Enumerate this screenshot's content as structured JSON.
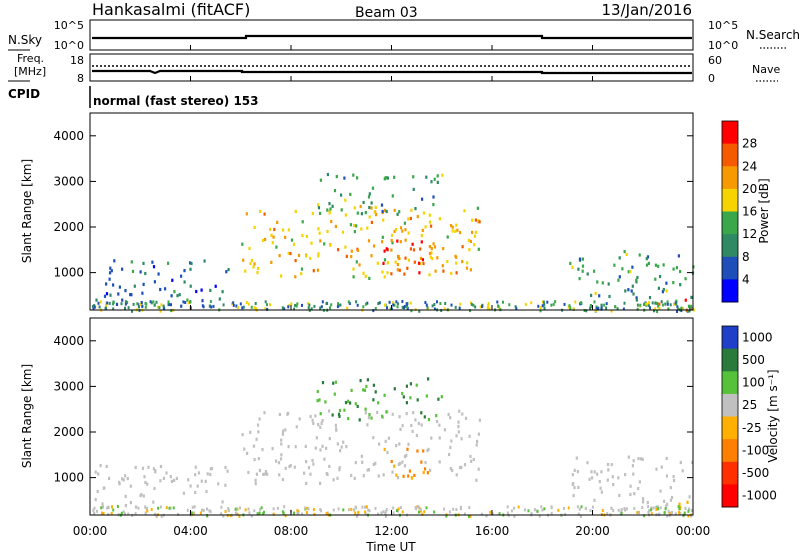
{
  "header": {
    "station": "Hankasalmi (fitACF)",
    "beam": "Beam 03",
    "date": "13/Jan/2016"
  },
  "noise_panel": {
    "left_label": "N.Sky",
    "left_ticks": [
      "10^5",
      "10^0"
    ],
    "right_label": "N.Search",
    "right_ticks": [
      "10^5",
      "10^0"
    ]
  },
  "freq_panel": {
    "left_label_1": "Freq.",
    "left_label_2": "[MHz]",
    "left_ticks": [
      "18",
      "8"
    ],
    "right_label": "Nave",
    "right_ticks": [
      "60",
      "0"
    ]
  },
  "cpid_panel": {
    "label": "CPID",
    "text": "normal (fast stereo) 153"
  },
  "power_panel": {
    "ylabel": "Slant Range [km]",
    "yticks": [
      "4000",
      "3000",
      "2000",
      "1000"
    ],
    "colorbar_label": "Power [dB]",
    "colorbar_ticks": [
      "28",
      "24",
      "20",
      "16",
      "12",
      "8",
      "4"
    ],
    "colors": [
      "#0000ff",
      "#1e4fb8",
      "#2f8a64",
      "#3aa84a",
      "#f5d400",
      "#f59a00",
      "#f55a00",
      "#ff0000"
    ]
  },
  "velocity_panel": {
    "ylabel": "Slant Range [km]",
    "yticks": [
      "4000",
      "3000",
      "2000",
      "1000"
    ],
    "colorbar_label": "Velocity [m s⁻¹]",
    "colorbar_ticks": [
      "1000",
      "500",
      "100",
      "25",
      "-25",
      "-100",
      "-500",
      "-1000"
    ],
    "colors": [
      "#1f3fc8",
      "#2a7a3c",
      "#56c23a",
      "#c0c0c0",
      "#ffb000",
      "#ff8000",
      "#ff3000",
      "#ff0000"
    ]
  },
  "xaxis": {
    "label": "Time UT",
    "ticks": [
      "00:00",
      "04:00",
      "08:00",
      "12:00",
      "16:00",
      "20:00",
      "00:00"
    ]
  },
  "chart_data": {
    "type": "heatmap",
    "title": "Hankasalmi (fitACF)",
    "x": [
      "00:00",
      "04:00",
      "08:00",
      "12:00",
      "16:00",
      "20:00",
      "00:00"
    ],
    "ylim": [
      180,
      4500
    ],
    "xlabel": "Time UT",
    "ylabel": "Slant Range [km]",
    "power_ticks_db": [
      4,
      8,
      12,
      16,
      20,
      24,
      28
    ],
    "velocity_ticks_ms": [
      -1000,
      -500,
      -100,
      -25,
      25,
      100,
      500,
      1000
    ],
    "scatter_regions": [
      {
        "name": "main_band",
        "t_start_h": 6.0,
        "t_end_h": 15.5,
        "range_km": [
          900,
          2500
        ],
        "power_db": 20,
        "velocity_ms": 0
      },
      {
        "name": "upper_echoes",
        "t_start_h": 9.0,
        "t_end_h": 14.0,
        "range_km": [
          2300,
          3200
        ],
        "power_db": 12,
        "velocity_ms": 100
      },
      {
        "name": "core_peak",
        "t_start_h": 11.5,
        "t_end_h": 13.5,
        "range_km": [
          1000,
          1800
        ],
        "power_db": 28,
        "velocity_ms": -100
      },
      {
        "name": "early_near",
        "t_start_h": 0.0,
        "t_end_h": 5.5,
        "range_km": [
          250,
          1300
        ],
        "power_db": 8,
        "velocity_ms": 0
      },
      {
        "name": "late_near",
        "t_start_h": 19.0,
        "t_end_h": 24.0,
        "range_km": [
          200,
          1500
        ],
        "power_db": 12,
        "velocity_ms": 0
      },
      {
        "name": "late_strong",
        "t_start_h": 22.5,
        "t_end_h": 24.0,
        "range_km": [
          200,
          500
        ],
        "power_db": 28,
        "velocity_ms": -25
      }
    ]
  }
}
